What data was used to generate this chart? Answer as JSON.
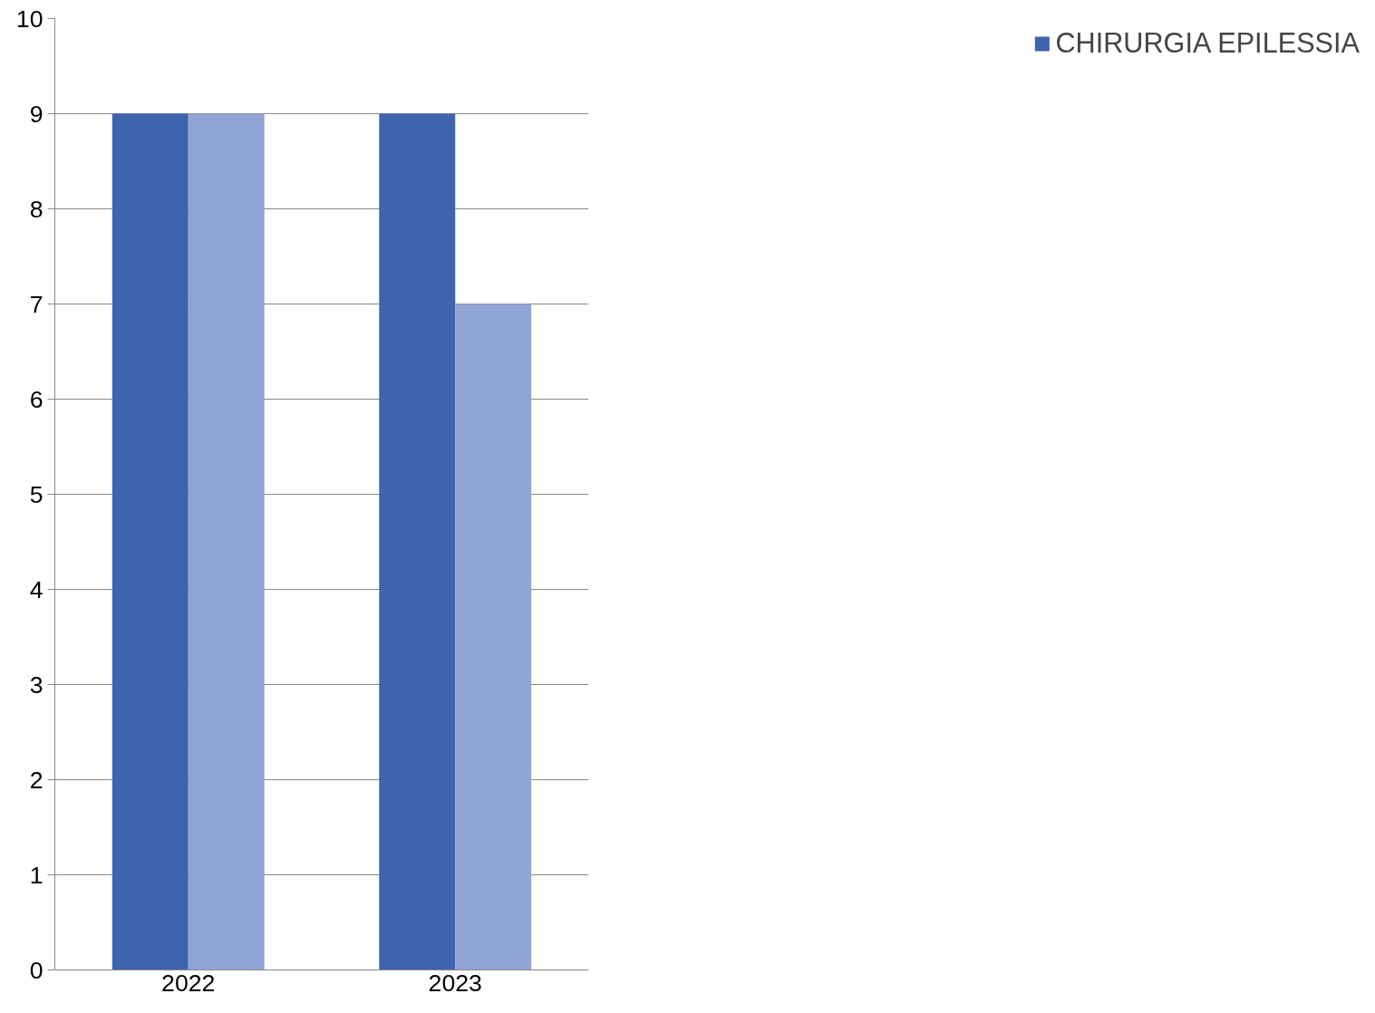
{
  "chart_data": {
    "type": "bar",
    "categories": [
      "2022",
      "2023"
    ],
    "series": [
      {
        "name": "CHIRURGIA EPILESSIA",
        "color": "#3d64ad",
        "values": [
          9,
          9
        ]
      },
      {
        "color": "#91a5d4",
        "values": [
          9,
          7
        ]
      }
    ],
    "ylim": [
      0,
      10
    ],
    "yticks": [
      0,
      1,
      2,
      3,
      4,
      5,
      6,
      7,
      8,
      9,
      10
    ],
    "grid": "y",
    "legend": "right"
  }
}
